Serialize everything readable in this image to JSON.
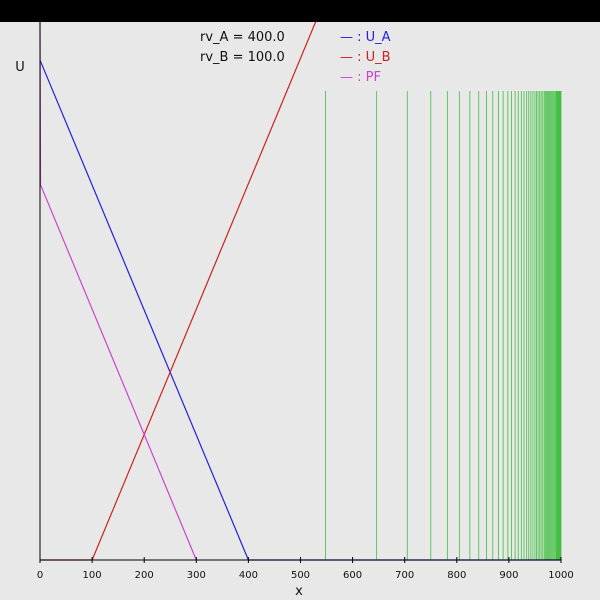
{
  "chart_data": {
    "type": "line",
    "title": "",
    "xlabel": "x",
    "ylabel": "U",
    "xlim": [
      0,
      1000
    ],
    "ylim": [
      0,
      1000
    ],
    "x_ticks": [
      "0",
      "100",
      "200",
      "300",
      "400",
      "500",
      "600",
      "700",
      "800",
      "900",
      "1000"
    ],
    "params": [
      {
        "label": "rv_A = 400.0"
      },
      {
        "label": "rv_B = 100.0"
      }
    ],
    "legend": {
      "placement": "top-center",
      "items": [
        {
          "label": "— : U_A",
          "color": "#2222dd"
        },
        {
          "label": "— : U_B",
          "color": "#cc2222"
        },
        {
          "label": "— : PF",
          "color": "#cc44cc"
        }
      ]
    },
    "series": [
      {
        "name": "U_A",
        "color": "#2222dd",
        "points": [
          [
            0,
            1066
          ],
          [
            400,
            0
          ],
          [
            1000,
            0
          ]
        ]
      },
      {
        "name": "U_B",
        "color": "#cc2222",
        "points": [
          [
            0,
            0
          ],
          [
            100,
            0
          ],
          [
            530,
            1150
          ]
        ]
      },
      {
        "name": "PF",
        "color": "#cc44cc",
        "points": [
          [
            0,
            1150
          ],
          [
            1,
            800
          ],
          [
            300,
            0
          ]
        ]
      }
    ],
    "vertical_lines": {
      "color": "#33bb33",
      "y_top": 1000,
      "x_values": [
        548,
        646,
        705,
        750,
        782,
        805,
        825,
        842,
        857,
        869,
        880,
        889,
        898,
        905,
        912,
        918,
        924,
        929,
        934,
        938,
        942,
        946,
        950,
        953,
        956,
        959,
        962,
        965,
        968,
        970,
        972,
        974,
        976,
        978,
        980,
        982,
        984,
        986,
        988,
        990,
        991,
        992,
        993,
        994,
        995,
        996,
        997,
        998,
        999,
        1000
      ]
    }
  }
}
